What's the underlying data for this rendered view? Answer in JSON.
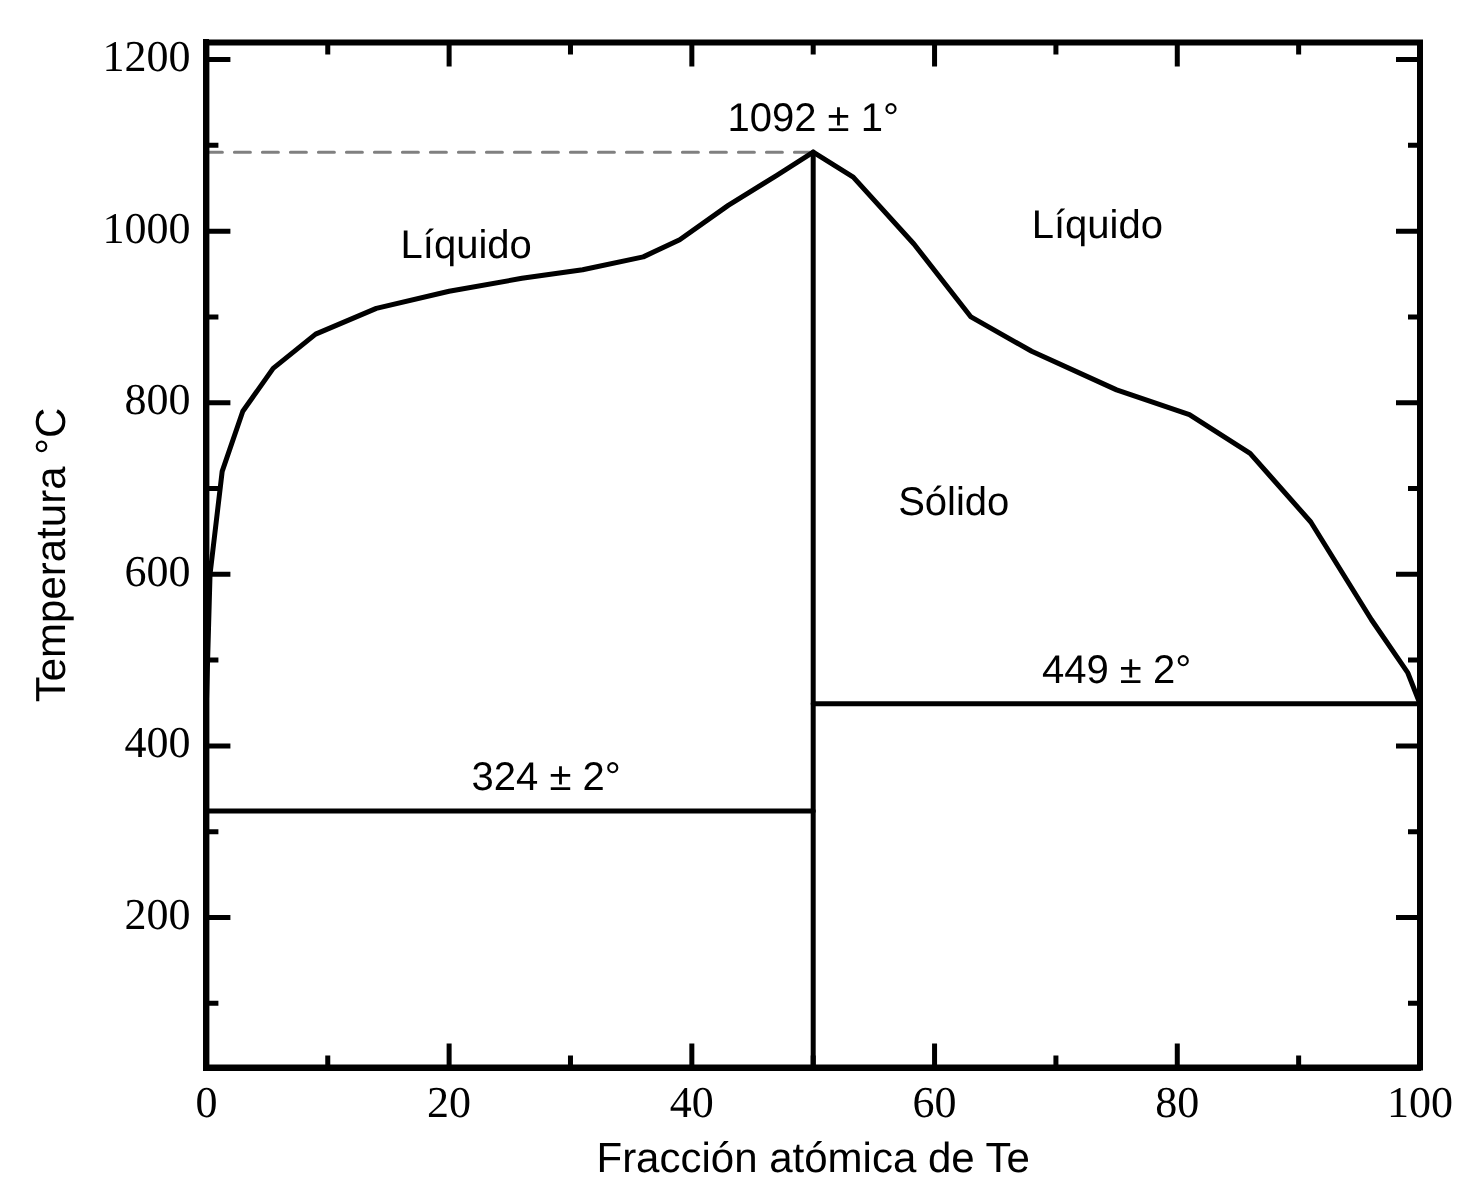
{
  "chart_data": {
    "type": "line",
    "xlabel": "Fracción atómica de Te",
    "ylabel": "Temperatura °C",
    "xlim": [
      0,
      100
    ],
    "ylim": [
      25,
      1220
    ],
    "xticks": [
      0,
      {
        "value": 10,
        "label": null
      },
      20,
      {
        "value": 30,
        "label": null
      },
      40,
      {
        "value": 50,
        "label": null
      },
      60,
      {
        "value": 70,
        "label": null
      },
      80,
      {
        "value": 90,
        "label": null
      },
      100
    ],
    "yticks": [
      {
        "value": 100,
        "label": null
      },
      200,
      {
        "value": 300,
        "label": null
      },
      400,
      {
        "value": 500,
        "label": null
      },
      600,
      {
        "value": 700,
        "label": null
      },
      800,
      {
        "value": 900,
        "label": null
      },
      1000,
      {
        "value": 1100,
        "label": null
      },
      1200
    ],
    "grid": false,
    "legend": false,
    "marker": "none",
    "series": [
      {
        "color": "#000000",
        "line_style": "solid",
        "x": [
          0,
          0,
          0.3,
          1.3,
          3,
          5.5,
          9,
          14,
          20,
          26,
          31,
          36,
          39,
          43,
          47,
          50
        ],
        "values": [
          324,
          450,
          600,
          720,
          790,
          840,
          880,
          910,
          930,
          945,
          955,
          970,
          990,
          1030,
          1065,
          1092
        ]
      },
      {
        "color": "#000000",
        "line_style": "solid",
        "x": [
          50,
          53.3,
          58.3,
          63,
          68,
          75,
          81,
          86,
          91,
          96,
          99,
          100
        ],
        "values": [
          1092,
          1063,
          985,
          900,
          860,
          815,
          786,
          741,
          661,
          547,
          485,
          449
        ]
      },
      {
        "color": "#000000",
        "line_style": "solid",
        "x": [
          0,
          50
        ],
        "values": [
          324,
          324
        ]
      },
      {
        "color": "#000000",
        "line_style": "solid",
        "x": [
          50,
          100
        ],
        "values": [
          449,
          449
        ]
      },
      {
        "color": "#808080",
        "line_style": "dashed",
        "x": [
          0,
          50
        ],
        "values": [
          1092,
          1092
        ]
      }
    ],
    "ref_lines": [
      {
        "axis": "x",
        "value": 50,
        "color": "#000000",
        "line_style": "solid"
      }
    ],
    "annotations": [
      {
        "text": "1092 ± 1°",
        "x": 50,
        "y": 1092
      },
      "Líquido",
      "Líquido",
      "Sólido",
      {
        "text": "324 ± 2°",
        "x": 28,
        "y": 324
      },
      {
        "text": "449 ± 2°",
        "x": 75,
        "y": 449
      }
    ]
  }
}
